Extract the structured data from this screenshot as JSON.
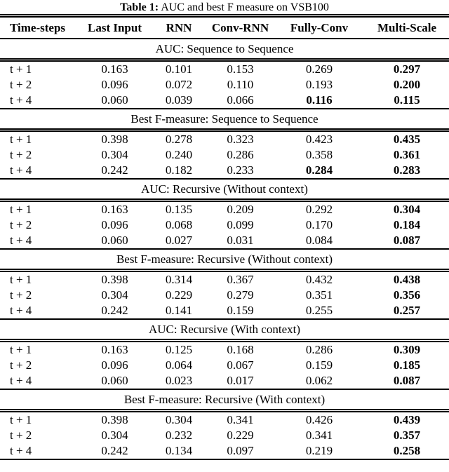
{
  "caption": {
    "label": "Table 1:",
    "text": " AUC and best F measure on VSB100"
  },
  "columns": [
    "Time-steps",
    "Last Input",
    "RNN",
    "Conv-RNN",
    "Fully-Conv",
    "Multi-Scale"
  ],
  "sections": [
    {
      "title": "AUC: Sequence to Sequence",
      "rows": [
        {
          "label": "t + 1",
          "values": [
            "0.163",
            "0.101",
            "0.153",
            "0.269",
            "0.297"
          ],
          "bold": [
            false,
            false,
            false,
            false,
            true
          ]
        },
        {
          "label": "t + 2",
          "values": [
            "0.096",
            "0.072",
            "0.110",
            "0.193",
            "0.200"
          ],
          "bold": [
            false,
            false,
            false,
            false,
            true
          ]
        },
        {
          "label": "t + 4",
          "values": [
            "0.060",
            "0.039",
            "0.066",
            "0.116",
            "0.115"
          ],
          "bold": [
            false,
            false,
            false,
            true,
            true
          ]
        }
      ]
    },
    {
      "title": "Best F-measure: Sequence to Sequence",
      "rows": [
        {
          "label": "t + 1",
          "values": [
            "0.398",
            "0.278",
            "0.323",
            "0.423",
            "0.435"
          ],
          "bold": [
            false,
            false,
            false,
            false,
            true
          ]
        },
        {
          "label": "t + 2",
          "values": [
            "0.304",
            "0.240",
            "0.286",
            "0.358",
            "0.361"
          ],
          "bold": [
            false,
            false,
            false,
            false,
            true
          ]
        },
        {
          "label": "t + 4",
          "values": [
            "0.242",
            "0.182",
            "0.233",
            "0.284",
            "0.283"
          ],
          "bold": [
            false,
            false,
            false,
            true,
            true
          ]
        }
      ]
    },
    {
      "title": "AUC: Recursive (Without context)",
      "rows": [
        {
          "label": "t + 1",
          "values": [
            "0.163",
            "0.135",
            "0.209",
            "0.292",
            "0.304"
          ],
          "bold": [
            false,
            false,
            false,
            false,
            true
          ]
        },
        {
          "label": "t + 2",
          "values": [
            "0.096",
            "0.068",
            "0.099",
            "0.170",
            "0.184"
          ],
          "bold": [
            false,
            false,
            false,
            false,
            true
          ]
        },
        {
          "label": "t + 4",
          "values": [
            "0.060",
            "0.027",
            "0.031",
            "0.084",
            "0.087"
          ],
          "bold": [
            false,
            false,
            false,
            false,
            true
          ]
        }
      ]
    },
    {
      "title": "Best F-measure: Recursive (Without context)",
      "rows": [
        {
          "label": "t + 1",
          "values": [
            "0.398",
            "0.314",
            "0.367",
            "0.432",
            "0.438"
          ],
          "bold": [
            false,
            false,
            false,
            false,
            true
          ]
        },
        {
          "label": "t + 2",
          "values": [
            "0.304",
            "0.229",
            "0.279",
            "0.351",
            "0.356"
          ],
          "bold": [
            false,
            false,
            false,
            false,
            true
          ]
        },
        {
          "label": "t + 4",
          "values": [
            "0.242",
            "0.141",
            "0.159",
            "0.255",
            "0.257"
          ],
          "bold": [
            false,
            false,
            false,
            false,
            true
          ]
        }
      ]
    },
    {
      "title": "AUC: Recursive (With context)",
      "rows": [
        {
          "label": "t + 1",
          "values": [
            "0.163",
            "0.125",
            "0.168",
            "0.286",
            "0.309"
          ],
          "bold": [
            false,
            false,
            false,
            false,
            true
          ]
        },
        {
          "label": "t + 2",
          "values": [
            "0.096",
            "0.064",
            "0.067",
            "0.159",
            "0.185"
          ],
          "bold": [
            false,
            false,
            false,
            false,
            true
          ]
        },
        {
          "label": "t + 4",
          "values": [
            "0.060",
            "0.023",
            "0.017",
            "0.062",
            "0.087"
          ],
          "bold": [
            false,
            false,
            false,
            false,
            true
          ]
        }
      ]
    },
    {
      "title": "Best F-measure: Recursive (With context)",
      "rows": [
        {
          "label": "t + 1",
          "values": [
            "0.398",
            "0.304",
            "0.341",
            "0.426",
            "0.439"
          ],
          "bold": [
            false,
            false,
            false,
            false,
            true
          ]
        },
        {
          "label": "t + 2",
          "values": [
            "0.304",
            "0.232",
            "0.229",
            "0.341",
            "0.357"
          ],
          "bold": [
            false,
            false,
            false,
            false,
            true
          ]
        },
        {
          "label": "t + 4",
          "values": [
            "0.242",
            "0.134",
            "0.097",
            "0.219",
            "0.258"
          ],
          "bold": [
            false,
            false,
            false,
            false,
            true
          ]
        }
      ]
    }
  ]
}
